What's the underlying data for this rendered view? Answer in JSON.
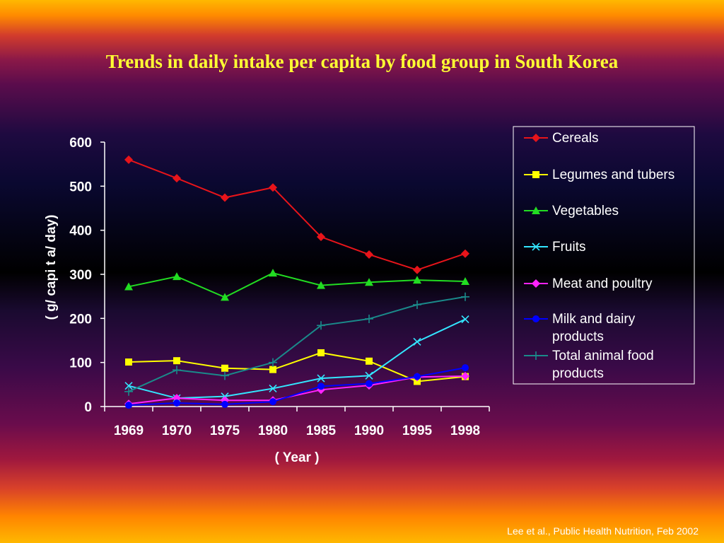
{
  "slide": {
    "title": "Trends in daily intake per capita by food group in South Korea",
    "source": "Lee et al., Public Health Nutrition, Feb 2002"
  },
  "chart_data": {
    "type": "line",
    "title": "",
    "xlabel": "( Year )",
    "ylabel": "( g/ capi t a/ day)",
    "categories": [
      "1969",
      "1970",
      "1975",
      "1980",
      "1985",
      "1990",
      "1995",
      "1998"
    ],
    "ylim": [
      0,
      600
    ],
    "yticks": [
      0,
      100,
      200,
      300,
      400,
      500,
      600
    ],
    "grid": false,
    "legend": "right",
    "series": [
      {
        "name": "Cereals",
        "color": "#e8141a",
        "marker": "diamond",
        "values": [
          560,
          518,
          474,
          497,
          385,
          345,
          310,
          347
        ]
      },
      {
        "name": "Legumes and tubers",
        "color": "#ffff00",
        "marker": "square",
        "values": [
          101,
          104,
          87,
          84,
          122,
          103,
          57,
          68
        ]
      },
      {
        "name": "Vegetables",
        "color": "#22dd22",
        "marker": "triangle",
        "values": [
          272,
          295,
          248,
          303,
          275,
          282,
          287,
          284
        ]
      },
      {
        "name": "Fruits",
        "color": "#33e6ff",
        "marker": "x",
        "values": [
          47,
          19,
          23,
          41,
          64,
          70,
          147,
          198
        ]
      },
      {
        "name": "Meat and poultry",
        "color": "#ff22ff",
        "marker": "diamond",
        "values": [
          6,
          19,
          14,
          14,
          38,
          48,
          67,
          69
        ]
      },
      {
        "name": "Milk and dairy products",
        "color": "#0000ff",
        "marker": "circle",
        "values": [
          3,
          8,
          5,
          11,
          46,
          52,
          68,
          88
        ]
      },
      {
        "name": "Total animal food products",
        "color": "#1a8a8a",
        "marker": "plus",
        "values": [
          34,
          83,
          70,
          100,
          184,
          199,
          231,
          249
        ]
      }
    ]
  }
}
